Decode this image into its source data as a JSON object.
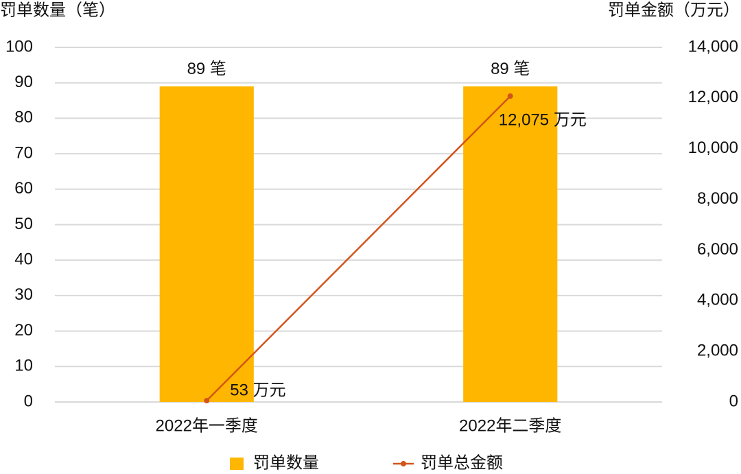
{
  "chart_data": {
    "type": "bar",
    "y_axis_title": "罚单数量（笔）",
    "y2_axis_title": "罚单金额（万元）",
    "categories": [
      "2022年一季度",
      "2022年二季度"
    ],
    "series": [
      {
        "name": "罚单数量",
        "type": "bar",
        "color": "#FFB600",
        "values": [
          89,
          89
        ],
        "value_labels": [
          "89 笔",
          "89 笔"
        ]
      },
      {
        "name": "罚单总金额",
        "type": "line",
        "axis": "y2",
        "color": "#D2541C",
        "values": [
          53,
          12075
        ],
        "value_labels": [
          "53 万元",
          "12,075 万元"
        ]
      }
    ],
    "ylim": [
      0,
      100
    ],
    "yticks": [
      0,
      10,
      20,
      30,
      40,
      50,
      60,
      70,
      80,
      90,
      100
    ],
    "y2lim": [
      0,
      14000
    ],
    "y2ticks": [
      0,
      {
        "value": 2000,
        "label": "2,000"
      },
      {
        "value": 4000,
        "label": "4,000"
      },
      {
        "value": 6000,
        "label": "6,000"
      },
      {
        "value": 8000,
        "label": "8,000"
      },
      {
        "value": 10000,
        "label": "10,000"
      },
      {
        "value": 12000,
        "label": "12,000"
      },
      {
        "value": 14000,
        "label": "14,000"
      }
    ],
    "grid": true,
    "legend": "bottom"
  }
}
